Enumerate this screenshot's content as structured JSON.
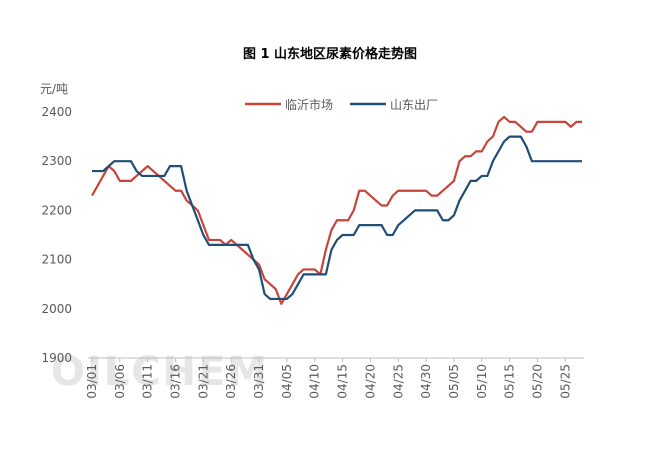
{
  "chart_data": {
    "type": "line",
    "title": "图 1  山东地区尿素价格走势图",
    "y_label": "元/吨",
    "watermark": "OILCHEM",
    "categories": [
      "03/01",
      null,
      null,
      null,
      null,
      "03/06",
      null,
      null,
      null,
      null,
      "03/11",
      null,
      null,
      null,
      null,
      "03/16",
      null,
      null,
      null,
      null,
      "03/21",
      null,
      null,
      null,
      null,
      "03/26",
      null,
      null,
      null,
      null,
      "03/31",
      null,
      null,
      null,
      null,
      "04/05",
      null,
      null,
      null,
      null,
      "04/10",
      null,
      null,
      null,
      null,
      "04/15",
      null,
      null,
      null,
      null,
      "04/20",
      null,
      null,
      null,
      null,
      "04/25",
      null,
      null,
      null,
      null,
      "04/30",
      null,
      null,
      null,
      null,
      "05/05",
      null,
      null,
      null,
      null,
      "05/10",
      null,
      null,
      null,
      null,
      "05/15",
      null,
      null,
      null,
      null,
      "05/20",
      null,
      null,
      null,
      null,
      "05/25",
      null,
      null,
      null
    ],
    "series": [
      {
        "name": "临沂市场",
        "color": "#c9443a",
        "values": [
          2230,
          2250,
          2270,
          2290,
          2280,
          2260,
          2260,
          2260,
          2270,
          2280,
          2290,
          2280,
          2270,
          2260,
          2250,
          2240,
          2240,
          2220,
          2210,
          2200,
          2170,
          2140,
          2140,
          2140,
          2130,
          2140,
          2130,
          2120,
          2110,
          2100,
          2090,
          2060,
          2050,
          2040,
          2010,
          2030,
          2050,
          2070,
          2080,
          2080,
          2080,
          2070,
          2120,
          2160,
          2180,
          2180,
          2180,
          2200,
          2240,
          2240,
          2230,
          2220,
          2210,
          2210,
          2230,
          2240,
          2240,
          2240,
          2240,
          2240,
          2240,
          2230,
          2230,
          2240,
          2250,
          2260,
          2300,
          2310,
          2310,
          2320,
          2320,
          2340,
          2350,
          2380,
          2390,
          2380,
          2380,
          2370,
          2360,
          2360,
          2380,
          2380,
          2380,
          2380,
          2380,
          2380,
          2370,
          2380,
          2380
        ]
      },
      {
        "name": "山东出厂",
        "color": "#1f4e79",
        "values": [
          2280,
          2280,
          2280,
          2290,
          2300,
          2300,
          2300,
          2300,
          2280,
          2270,
          2270,
          2270,
          2270,
          2270,
          2290,
          2290,
          2290,
          2240,
          2210,
          2180,
          2150,
          2130,
          2130,
          2130,
          2130,
          2130,
          2130,
          2130,
          2130,
          2100,
          2080,
          2030,
          2020,
          2020,
          2020,
          2020,
          2030,
          2050,
          2070,
          2070,
          2070,
          2070,
          2070,
          2120,
          2140,
          2150,
          2150,
          2150,
          2170,
          2170,
          2170,
          2170,
          2170,
          2150,
          2150,
          2170,
          2180,
          2190,
          2200,
          2200,
          2200,
          2200,
          2200,
          2180,
          2180,
          2190,
          2220,
          2240,
          2260,
          2260,
          2270,
          2270,
          2300,
          2320,
          2340,
          2350,
          2350,
          2350,
          2330,
          2300,
          2300,
          2300,
          2300,
          2300,
          2300,
          2300,
          2300,
          2300,
          2300
        ]
      }
    ],
    "ylim": [
      1900,
      2400
    ],
    "yticks": [
      1900,
      2000,
      2100,
      2200,
      2300,
      2400
    ],
    "grid": false,
    "legend": "top-right"
  }
}
